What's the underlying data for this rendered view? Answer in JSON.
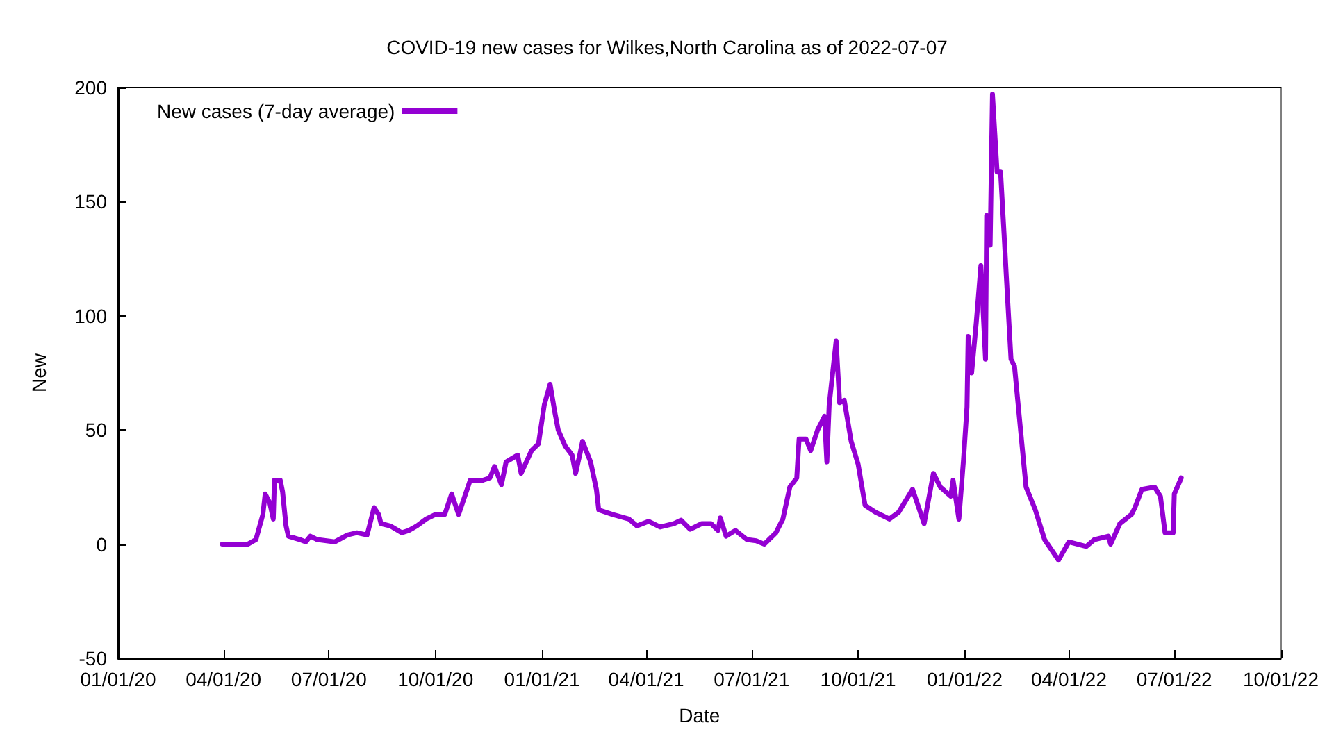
{
  "chart_data": {
    "type": "line",
    "title": "COVID-19 new cases for Wilkes,North Carolina as of 2022-07-07",
    "xlabel": "Date",
    "ylabel": "New",
    "x": [
      "2020-03-31",
      "2020-04-22",
      "2020-04-29",
      "2020-05-05",
      "2020-05-07",
      "2020-05-11",
      "2020-05-14",
      "2020-05-15",
      "2020-05-20",
      "2020-05-22",
      "2020-05-25",
      "2020-05-27",
      "2020-06-06",
      "2020-06-11",
      "2020-06-15",
      "2020-06-21",
      "2020-07-06",
      "2020-07-17",
      "2020-07-25",
      "2020-08-03",
      "2020-08-09",
      "2020-08-13",
      "2020-08-15",
      "2020-08-23",
      "2020-09-02",
      "2020-09-08",
      "2020-09-15",
      "2020-09-23",
      "2020-10-01",
      "2020-10-09",
      "2020-10-15",
      "2020-10-21",
      "2020-10-31",
      "2020-11-11",
      "2020-11-17",
      "2020-11-21",
      "2020-11-27",
      "2020-12-01",
      "2020-12-11",
      "2020-12-14",
      "2020-12-23",
      "2020-12-29",
      "2021-01-03",
      "2021-01-08",
      "2021-01-12",
      "2021-01-15",
      "2021-01-21",
      "2021-01-27",
      "2021-01-30",
      "2021-02-03",
      "2021-02-05",
      "2021-02-12",
      "2021-02-17",
      "2021-02-19",
      "2021-03-03",
      "2021-03-10",
      "2021-03-17",
      "2021-03-24",
      "2021-04-03",
      "2021-04-13",
      "2021-04-25",
      "2021-05-01",
      "2021-05-09",
      "2021-05-19",
      "2021-05-27",
      "2021-06-02",
      "2021-06-04",
      "2021-06-09",
      "2021-06-17",
      "2021-06-27",
      "2021-07-05",
      "2021-07-12",
      "2021-07-22",
      "2021-07-28",
      "2021-08-03",
      "2021-08-09",
      "2021-08-11",
      "2021-08-17",
      "2021-08-21",
      "2021-08-27",
      "2021-09-02",
      "2021-09-04",
      "2021-09-06",
      "2021-09-12",
      "2021-09-15",
      "2021-09-19",
      "2021-09-25",
      "2021-10-01",
      "2021-10-07",
      "2021-10-16",
      "2021-10-28",
      "2021-11-05",
      "2021-11-17",
      "2021-11-27",
      "2021-12-05",
      "2021-12-11",
      "2021-12-20",
      "2021-12-22",
      "2021-12-27",
      "2021-12-31",
      "2022-01-03",
      "2022-01-04",
      "2022-01-07",
      "2022-01-11",
      "2022-01-15",
      "2022-01-19",
      "2022-01-20",
      "2022-01-23",
      "2022-01-25",
      "2022-01-29",
      "2022-02-01",
      "2022-02-04",
      "2022-02-06",
      "2022-02-10",
      "2022-02-13",
      "2022-02-19",
      "2022-02-23",
      "2022-03-03",
      "2022-03-11",
      "2022-03-23",
      "2022-04-01",
      "2022-04-16",
      "2022-04-23",
      "2022-05-05",
      "2022-05-07",
      "2022-05-15",
      "2022-05-25",
      "2022-05-28",
      "2022-06-03",
      "2022-06-14",
      "2022-06-19",
      "2022-06-23",
      "2022-06-30",
      "2022-07-01",
      "2022-07-07"
    ],
    "series": [
      {
        "name": "New cases (7-day average)",
        "color": "#9400d3",
        "values": [
          0,
          0,
          2,
          13,
          22,
          18,
          11,
          28,
          28,
          23,
          8,
          3.5,
          2,
          1,
          3.5,
          2,
          1,
          4,
          5,
          4,
          16,
          13,
          9,
          8,
          5,
          6,
          8,
          11,
          13,
          13,
          22,
          13,
          28,
          28,
          29,
          34,
          26,
          36,
          39,
          31,
          41,
          44,
          61,
          70,
          58,
          50,
          43,
          39,
          31,
          40,
          45,
          36,
          24,
          15,
          13,
          12,
          11,
          8,
          10,
          7.5,
          9,
          10.5,
          6.5,
          9,
          9,
          6,
          11.5,
          3.5,
          6,
          2,
          1.5,
          0,
          5,
          11,
          25,
          29,
          46,
          46,
          41,
          50,
          56,
          36,
          61,
          89,
          62,
          63,
          45,
          35,
          17,
          14,
          11,
          14,
          24,
          9,
          31,
          25,
          21,
          28,
          11,
          37,
          60,
          91,
          75,
          97,
          122,
          81,
          144,
          131,
          197,
          163,
          163,
          136,
          117,
          81,
          78,
          46,
          25,
          15,
          2,
          -7,
          1,
          -1,
          2,
          3.5,
          0,
          9,
          13,
          16,
          24,
          25,
          21,
          5,
          5,
          22,
          29
        ]
      }
    ],
    "xlim": [
      "2020-01-01",
      "2022-10-01"
    ],
    "xticks": [
      {
        "value": "2020-01-01",
        "label": "01/01/20"
      },
      {
        "value": "2020-04-01",
        "label": "04/01/20"
      },
      {
        "value": "2020-07-01",
        "label": "07/01/20"
      },
      {
        "value": "2020-10-01",
        "label": "10/01/20"
      },
      {
        "value": "2021-01-01",
        "label": "01/01/21"
      },
      {
        "value": "2021-04-01",
        "label": "04/01/21"
      },
      {
        "value": "2021-07-01",
        "label": "07/01/21"
      },
      {
        "value": "2021-10-01",
        "label": "10/01/21"
      },
      {
        "value": "2022-01-01",
        "label": "01/01/22"
      },
      {
        "value": "2022-04-01",
        "label": "04/01/22"
      },
      {
        "value": "2022-07-01",
        "label": "07/01/22"
      },
      {
        "value": "2022-10-01",
        "label": "10/01/22"
      }
    ],
    "ylim": [
      -50,
      200
    ],
    "yticks": [
      -50,
      0,
      50,
      100,
      150,
      200
    ],
    "grid": false,
    "legend": "top left",
    "marker": "none",
    "line_style": "solid"
  }
}
